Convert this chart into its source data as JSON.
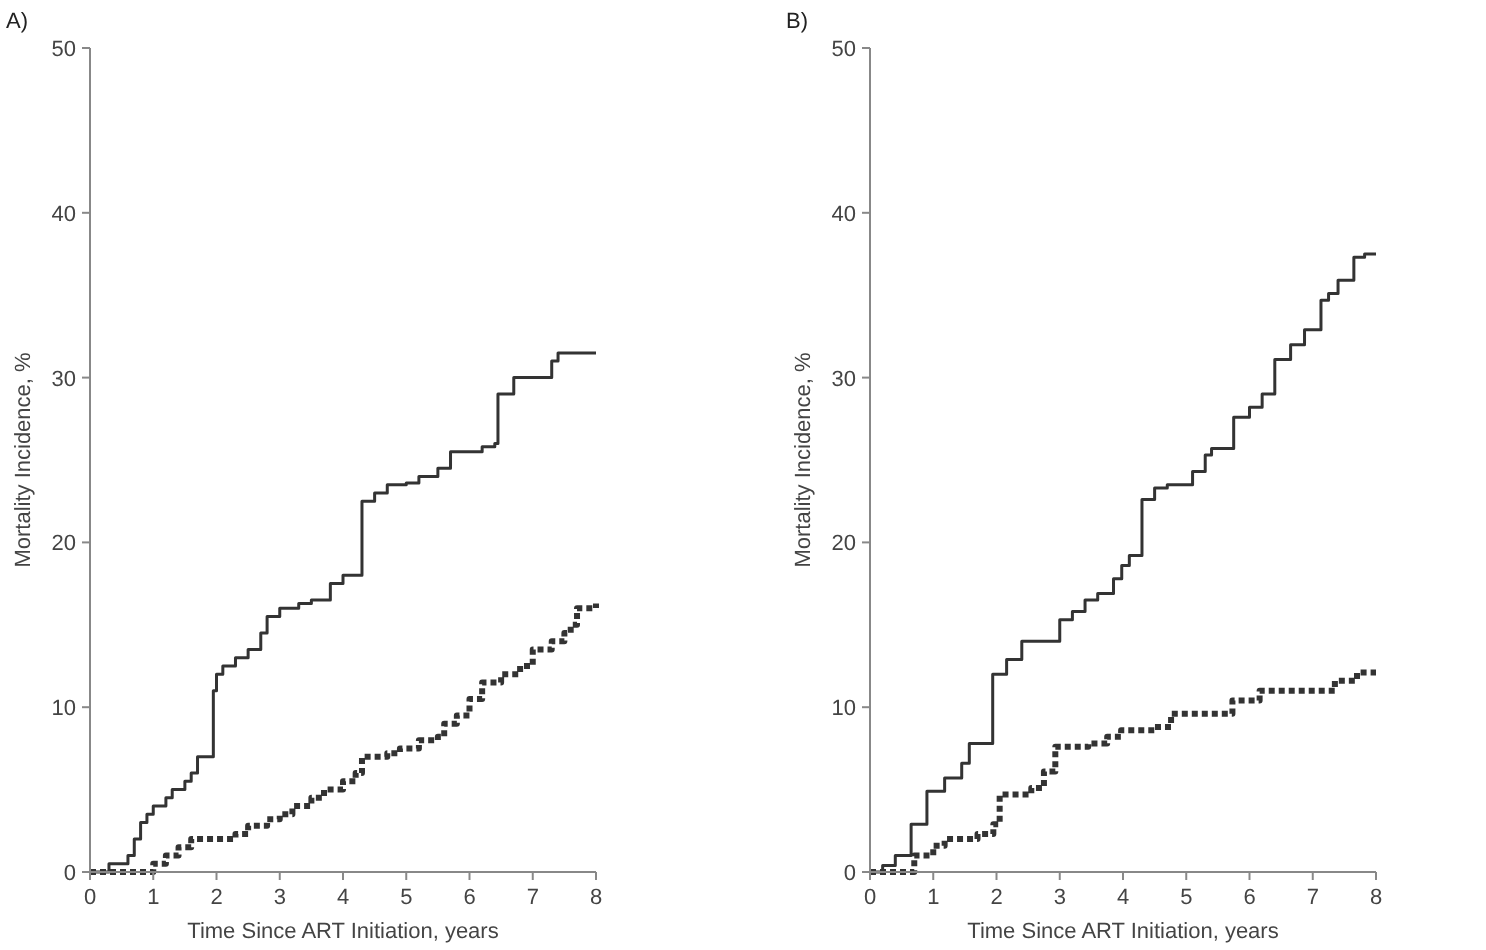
{
  "chart_data": [
    {
      "type": "step",
      "title": "A)",
      "xlabel": "Time Since ART Initiation, years",
      "ylabel": "Mortality Incidence, %",
      "xlim": [
        0,
        8
      ],
      "xticks": [
        0,
        1,
        2,
        3,
        4,
        5,
        6,
        7,
        8
      ],
      "ylim": [
        0,
        50
      ],
      "yticks": [
        0,
        10,
        20,
        30,
        40,
        50
      ],
      "series": [
        {
          "color": "#333333",
          "line_style": "solid",
          "x": [
            0,
            0.3,
            0.6,
            0.7,
            0.8,
            0.9,
            1.0,
            1.2,
            1.3,
            1.5,
            1.6,
            1.7,
            1.95,
            2.0,
            2.1,
            2.3,
            2.5,
            2.7,
            2.8,
            3.0,
            3.3,
            3.5,
            3.8,
            4.0,
            4.3,
            4.5,
            4.7,
            5.0,
            5.2,
            5.5,
            5.7,
            6.2,
            6.4,
            6.45,
            6.7,
            7.3,
            7.4,
            8
          ],
          "values": [
            0,
            0.5,
            1,
            2,
            3,
            3.5,
            4,
            4.5,
            5,
            5.5,
            6,
            7,
            11,
            12,
            12.5,
            13,
            13.5,
            14.5,
            15.5,
            16,
            16.3,
            16.5,
            17.5,
            18,
            22.5,
            23,
            23.5,
            23.6,
            24,
            24.5,
            25.5,
            25.8,
            26,
            29,
            30,
            31,
            31.5,
            31.5
          ]
        },
        {
          "color": "#333333",
          "line_style": "dotted",
          "x": [
            0,
            0.9,
            1.0,
            1.2,
            1.4,
            1.6,
            2.0,
            2.3,
            2.5,
            2.8,
            3.0,
            3.2,
            3.5,
            3.7,
            4.0,
            4.2,
            4.3,
            4.7,
            4.9,
            5.2,
            5.5,
            5.6,
            5.8,
            6.0,
            6.2,
            6.5,
            6.8,
            7.0,
            7.3,
            7.5,
            7.6,
            7.7,
            8
          ],
          "values": [
            0,
            0,
            0.5,
            1,
            1.5,
            2,
            2,
            2.3,
            2.8,
            3.2,
            3.5,
            4,
            4.5,
            5,
            5.5,
            6,
            7,
            7.2,
            7.5,
            8,
            8.2,
            9,
            9.5,
            10.5,
            11.5,
            12,
            12.5,
            13.5,
            14,
            14.5,
            15,
            16,
            16.3
          ]
        }
      ]
    },
    {
      "type": "step",
      "title": "B)",
      "xlabel": "Time Since ART Initiation, years",
      "ylabel": "Mortality Incidence, %",
      "xlim": [
        0,
        8
      ],
      "xticks": [
        0,
        1,
        2,
        3,
        4,
        5,
        6,
        7,
        8
      ],
      "ylim": [
        0,
        50
      ],
      "yticks": [
        0,
        10,
        20,
        30,
        40,
        50
      ],
      "series": [
        {
          "color": "#333333",
          "line_style": "solid",
          "x": [
            0,
            0.2,
            0.4,
            0.65,
            0.9,
            1.18,
            1.45,
            1.57,
            1.94,
            2.16,
            2.4,
            3.0,
            3.2,
            3.4,
            3.6,
            3.85,
            3.98,
            4.1,
            4.3,
            4.5,
            4.7,
            5.1,
            5.3,
            5.4,
            5.75,
            6.0,
            6.2,
            6.4,
            6.65,
            6.87,
            7.13,
            7.25,
            7.4,
            7.65,
            7.82,
            8
          ],
          "values": [
            0,
            0.4,
            1,
            2.9,
            4.9,
            5.7,
            6.6,
            7.8,
            12.0,
            12.9,
            14,
            15.3,
            15.8,
            16.5,
            16.9,
            17.8,
            18.6,
            19.2,
            22.6,
            23.3,
            23.5,
            24.3,
            25.3,
            25.7,
            27.6,
            28.2,
            29,
            31.1,
            32,
            32.9,
            34.7,
            35.1,
            35.9,
            37.3,
            37.5,
            37.5
          ]
        },
        {
          "color": "#333333",
          "line_style": "dotted",
          "x": [
            0,
            0.6,
            0.7,
            1.0,
            1.18,
            1.7,
            1.95,
            2.05,
            2.55,
            2.75,
            2.93,
            3.45,
            3.75,
            3.97,
            4.5,
            4.76,
            5.73,
            6.16,
            7.35,
            7.7,
            8
          ],
          "values": [
            0,
            0,
            1.0,
            1.6,
            2.0,
            2.3,
            2.9,
            4.7,
            5.1,
            6.1,
            7.6,
            7.8,
            8.2,
            8.6,
            8.8,
            9.6,
            10.4,
            11.0,
            11.6,
            12.1,
            12.1
          ]
        }
      ]
    }
  ]
}
